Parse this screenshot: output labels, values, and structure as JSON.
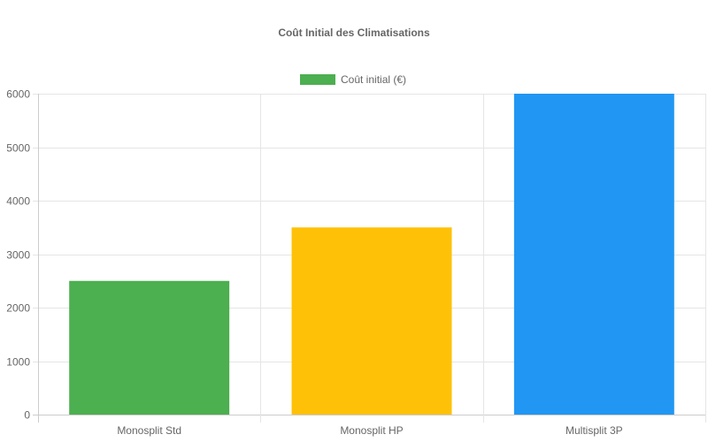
{
  "chart_data": {
    "type": "bar",
    "title": "Coût Initial des Climatisations",
    "categories": [
      "Monosplit Std",
      "Monosplit HP",
      "Multisplit 3P"
    ],
    "series": [
      {
        "name": "Coût initial (€)",
        "values": [
          2500,
          3500,
          6000
        ],
        "colors": [
          "#4caf50",
          "#ffc107",
          "#2196f3"
        ]
      }
    ],
    "legend_color": "#4caf50",
    "ylim": [
      0,
      6000
    ],
    "yticks": [
      0,
      1000,
      2000,
      3000,
      4000,
      5000,
      6000
    ],
    "grid": true,
    "legend_position": "top"
  }
}
